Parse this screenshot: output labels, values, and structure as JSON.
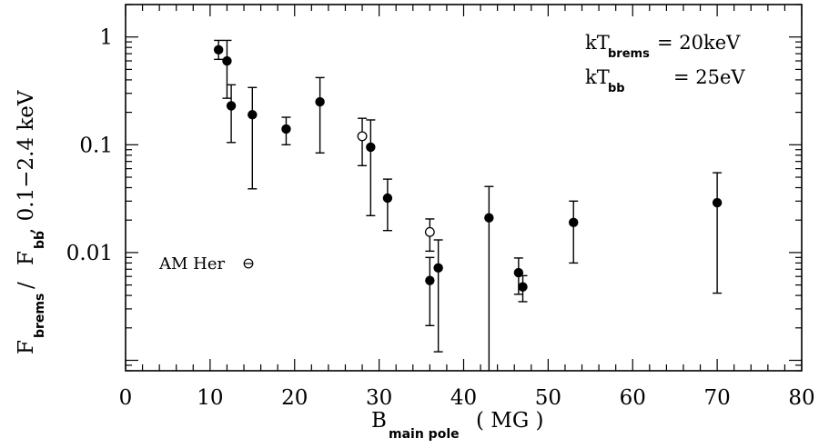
{
  "chart_data": {
    "type": "scatter",
    "xlabel": {
      "main": "B",
      "sub": "main pole",
      "unit": "( MG )"
    },
    "ylabel": {
      "num": "F",
      "num_sub": "brems",
      "sep": "/",
      "den": "F",
      "den_sub": "bb",
      "band": ", 0.1−2.4 keV"
    },
    "xlim": [
      0,
      80
    ],
    "ylim": [
      0.0008,
      2.0
    ],
    "yscale": "log",
    "x_ticks": [
      "0",
      "10",
      "20",
      "30",
      "40",
      "50",
      "60",
      "70",
      "80"
    ],
    "y_ticks": [
      "0.01",
      "0.1",
      "1"
    ],
    "annotations": [
      {
        "main": "kT",
        "sub": "brems",
        "rest": "= 20keV"
      },
      {
        "main": "kT",
        "sub": "bb",
        "rest": "= 25eV"
      }
    ],
    "legend_label": "AM Her",
    "series": [
      {
        "marker": "filled",
        "points": [
          {
            "x": 11.0,
            "y": 0.76,
            "lo": 0.62,
            "hi": 0.93
          },
          {
            "x": 12.0,
            "y": 0.6,
            "lo": 0.27,
            "hi": 0.93
          },
          {
            "x": 12.5,
            "y": 0.23,
            "lo": 0.105,
            "hi": 0.36
          },
          {
            "x": 15.0,
            "y": 0.19,
            "lo": 0.039,
            "hi": 0.34
          },
          {
            "x": 19.0,
            "y": 0.14,
            "lo": 0.1,
            "hi": 0.18
          },
          {
            "x": 23.0,
            "y": 0.25,
            "lo": 0.084,
            "hi": 0.42
          },
          {
            "x": 29.0,
            "y": 0.095,
            "lo": 0.022,
            "hi": 0.17
          },
          {
            "x": 31.0,
            "y": 0.032,
            "lo": 0.016,
            "hi": 0.048
          },
          {
            "x": 36.0,
            "y": 0.0055,
            "lo": 0.0021,
            "hi": 0.009
          },
          {
            "x": 37.0,
            "y": 0.0072,
            "lo": 0.0012,
            "hi": 0.0131
          },
          {
            "x": 43.0,
            "y": 0.021,
            "lo": 0.0008,
            "hi": 0.041
          },
          {
            "x": 46.5,
            "y": 0.0065,
            "lo": 0.0041,
            "hi": 0.0089
          },
          {
            "x": 47.0,
            "y": 0.0048,
            "lo": 0.0035,
            "hi": 0.0061
          },
          {
            "x": 53.0,
            "y": 0.019,
            "lo": 0.008,
            "hi": 0.03
          },
          {
            "x": 70.0,
            "y": 0.029,
            "lo": 0.0042,
            "hi": 0.055
          }
        ]
      },
      {
        "marker": "open",
        "points": [
          {
            "x": 28.0,
            "y": 0.12,
            "lo": 0.064,
            "hi": 0.176
          },
          {
            "x": 36.0,
            "y": 0.0155,
            "lo": 0.0103,
            "hi": 0.0205
          }
        ]
      }
    ]
  }
}
